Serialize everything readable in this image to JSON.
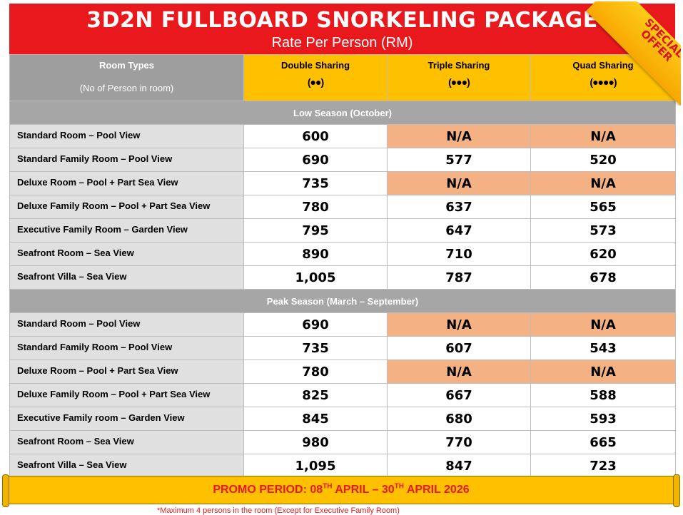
{
  "title": "3D2N FULLBOARD SNORKELING PACKAGE",
  "subtitle": "Rate Per Person (RM)",
  "badge": {
    "line1": "SPECIAL",
    "line2": "OFFER"
  },
  "header": {
    "room_types": "Room Types",
    "room_types_sub": "(No of Person in room)",
    "double": "Double Sharing",
    "triple": "Triple Sharing",
    "quad": "Quad Sharing",
    "double_icon": "(👥)",
    "triple_icon": "(👥👤)",
    "quad_icon": "(👥👥)"
  },
  "low_season": {
    "label": "Low Season (October)",
    "rows": [
      {
        "room": "Standard Room – Pool View",
        "double": "600",
        "triple": "N/A",
        "quad": "N/A"
      },
      {
        "room": "Standard Family Room – Pool View",
        "double": "690",
        "triple": "577",
        "quad": "520"
      },
      {
        "room": "Deluxe Room – Pool + Part Sea View",
        "double": "735",
        "triple": "N/A",
        "quad": "N/A"
      },
      {
        "room": "Deluxe Family Room – Pool + Part Sea View",
        "double": "780",
        "triple": "637",
        "quad": "565"
      },
      {
        "room": "Executive Family Room – Garden View",
        "double": "795",
        "triple": "647",
        "quad": "573"
      },
      {
        "room": "Seafront Room – Sea View",
        "double": "890",
        "triple": "710",
        "quad": "620"
      },
      {
        "room": "Seafront Villa – Sea View",
        "double": "1,005",
        "triple": "787",
        "quad": "678"
      }
    ]
  },
  "peak_season": {
    "label": "Peak Season (March – September)",
    "rows": [
      {
        "room": "Standard Room – Pool View",
        "double": "690",
        "triple": "N/A",
        "quad": "N/A"
      },
      {
        "room": "Standard Family Room – Pool View",
        "double": "735",
        "triple": "607",
        "quad": "543"
      },
      {
        "room": "Deluxe Room – Pool + Part Sea View",
        "double": "780",
        "triple": "N/A",
        "quad": "N/A"
      },
      {
        "room": "Deluxe Family Room – Pool + Part Sea View",
        "double": "825",
        "triple": "667",
        "quad": "588"
      },
      {
        "room": "Executive Family room – Garden View",
        "double": "845",
        "triple": "680",
        "quad": "593"
      },
      {
        "room": "Seafront Room – Sea View",
        "double": "980",
        "triple": "770",
        "quad": "665"
      },
      {
        "room": "Seafront Villa – Sea View",
        "double": "1,095",
        "triple": "847",
        "quad": "723"
      }
    ]
  },
  "promo": {
    "prefix": "PROMO PERIOD: 08",
    "sup1": "TH",
    "middle": " APRIL – 30",
    "sup2": "TH",
    "suffix": " APRIL 2026"
  },
  "footnote": "*Maximum 4 persons in the room (Except for Executive Family Room)",
  "colors": {
    "title_bg": "#e8181c",
    "header_gold": "#ffc000",
    "na_bg": "#f4b183",
    "season_bg": "#a6a6a6"
  }
}
